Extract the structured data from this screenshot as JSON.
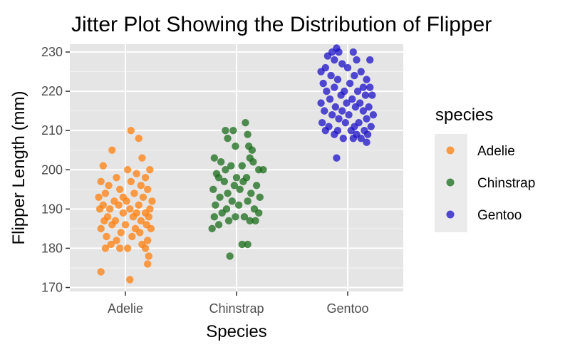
{
  "chart_data": {
    "type": "scatter",
    "title": "Jitter Plot Showing the Distribution of Flipper",
    "xlabel": "Species",
    "ylabel": "Flipper Length (mm)",
    "categories": [
      "Adelie",
      "Chinstrap",
      "Gentoo"
    ],
    "ylim": [
      169,
      232
    ],
    "yticks": [
      170,
      180,
      190,
      200,
      210,
      220,
      230
    ],
    "grid": true,
    "legend": {
      "title": "species",
      "placement": "right",
      "entries": [
        "Adelie",
        "Chinstrap",
        "Gentoo"
      ]
    },
    "series": [
      {
        "name": "Adelie",
        "color": "#ff7f0e",
        "points": [
          {
            "x": 0.05,
            "y": 210
          },
          {
            "x": 0.12,
            "y": 208
          },
          {
            "x": 0.15,
            "y": 203
          },
          {
            "x": -0.12,
            "y": 205
          },
          {
            "x": -0.2,
            "y": 201
          },
          {
            "x": 0.02,
            "y": 200
          },
          {
            "x": 0.22,
            "y": 200
          },
          {
            "x": 0.1,
            "y": 199
          },
          {
            "x": -0.08,
            "y": 198
          },
          {
            "x": 0.18,
            "y": 198
          },
          {
            "x": -0.22,
            "y": 197
          },
          {
            "x": 0.05,
            "y": 197
          },
          {
            "x": 0.14,
            "y": 196
          },
          {
            "x": -0.15,
            "y": 196
          },
          {
            "x": -0.05,
            "y": 195
          },
          {
            "x": 0.2,
            "y": 195
          },
          {
            "x": -0.18,
            "y": 194
          },
          {
            "x": 0.08,
            "y": 194
          },
          {
            "x": -0.24,
            "y": 193
          },
          {
            "x": -0.02,
            "y": 193
          },
          {
            "x": 0.16,
            "y": 193
          },
          {
            "x": 0.24,
            "y": 192
          },
          {
            "x": -0.1,
            "y": 192
          },
          {
            "x": 0.01,
            "y": 192
          },
          {
            "x": -0.2,
            "y": 191
          },
          {
            "x": 0.12,
            "y": 191
          },
          {
            "x": -0.06,
            "y": 191
          },
          {
            "x": 0.22,
            "y": 190
          },
          {
            "x": -0.14,
            "y": 190
          },
          {
            "x": 0.04,
            "y": 190
          },
          {
            "x": -0.23,
            "y": 190
          },
          {
            "x": 0.18,
            "y": 189
          },
          {
            "x": -0.02,
            "y": 189
          },
          {
            "x": 0.1,
            "y": 189
          },
          {
            "x": -0.16,
            "y": 188
          },
          {
            "x": 0.07,
            "y": 188
          },
          {
            "x": 0.21,
            "y": 188
          },
          {
            "x": -0.09,
            "y": 187
          },
          {
            "x": 0.14,
            "y": 187
          },
          {
            "x": -0.19,
            "y": 187
          },
          {
            "x": 0.0,
            "y": 186
          },
          {
            "x": 0.19,
            "y": 186
          },
          {
            "x": -0.12,
            "y": 186
          },
          {
            "x": 0.09,
            "y": 185
          },
          {
            "x": -0.22,
            "y": 185
          },
          {
            "x": 0.23,
            "y": 185
          },
          {
            "x": -0.04,
            "y": 184
          },
          {
            "x": 0.13,
            "y": 184
          },
          {
            "x": -0.17,
            "y": 183
          },
          {
            "x": 0.06,
            "y": 183
          },
          {
            "x": 0.2,
            "y": 182
          },
          {
            "x": -0.08,
            "y": 182
          },
          {
            "x": 0.15,
            "y": 181
          },
          {
            "x": -0.13,
            "y": 181
          },
          {
            "x": 0.02,
            "y": 180
          },
          {
            "x": 0.18,
            "y": 180
          },
          {
            "x": -0.05,
            "y": 180
          },
          {
            "x": -0.18,
            "y": 180
          },
          {
            "x": 0.21,
            "y": 178
          },
          {
            "x": 0.2,
            "y": 176
          },
          {
            "x": -0.22,
            "y": 174
          },
          {
            "x": 0.04,
            "y": 172
          }
        ]
      },
      {
        "name": "Chinstrap",
        "color": "#1a6b1a",
        "points": [
          {
            "x": 0.08,
            "y": 212
          },
          {
            "x": -0.1,
            "y": 210
          },
          {
            "x": -0.03,
            "y": 210
          },
          {
            "x": 0.1,
            "y": 209
          },
          {
            "x": -0.08,
            "y": 208
          },
          {
            "x": -0.01,
            "y": 206
          },
          {
            "x": 0.11,
            "y": 206
          },
          {
            "x": 0.14,
            "y": 205
          },
          {
            "x": 0.12,
            "y": 203
          },
          {
            "x": -0.2,
            "y": 203
          },
          {
            "x": -0.14,
            "y": 202
          },
          {
            "x": 0.15,
            "y": 202
          },
          {
            "x": -0.05,
            "y": 201
          },
          {
            "x": 0.05,
            "y": 201
          },
          {
            "x": -0.1,
            "y": 200
          },
          {
            "x": 0.2,
            "y": 200
          },
          {
            "x": 0.24,
            "y": 200
          },
          {
            "x": -0.18,
            "y": 199
          },
          {
            "x": 0.0,
            "y": 198
          },
          {
            "x": 0.09,
            "y": 198
          },
          {
            "x": -0.16,
            "y": 198
          },
          {
            "x": -0.11,
            "y": 197
          },
          {
            "x": 0.06,
            "y": 197
          },
          {
            "x": -0.02,
            "y": 196
          },
          {
            "x": 0.18,
            "y": 196
          },
          {
            "x": -0.21,
            "y": 195
          },
          {
            "x": 0.03,
            "y": 195
          },
          {
            "x": -0.08,
            "y": 194
          },
          {
            "x": 0.13,
            "y": 194
          },
          {
            "x": -0.15,
            "y": 193
          },
          {
            "x": 0.21,
            "y": 193
          },
          {
            "x": -0.04,
            "y": 192
          },
          {
            "x": 0.1,
            "y": 192
          },
          {
            "x": -0.19,
            "y": 191
          },
          {
            "x": 0.02,
            "y": 191
          },
          {
            "x": -0.09,
            "y": 190
          },
          {
            "x": 0.16,
            "y": 190
          },
          {
            "x": -0.13,
            "y": 189
          },
          {
            "x": 0.2,
            "y": 189
          },
          {
            "x": -0.01,
            "y": 188
          },
          {
            "x": 0.07,
            "y": 188
          },
          {
            "x": -0.2,
            "y": 188
          },
          {
            "x": 0.12,
            "y": 187
          },
          {
            "x": -0.07,
            "y": 187
          },
          {
            "x": 0.17,
            "y": 187
          },
          {
            "x": -0.16,
            "y": 186
          },
          {
            "x": -0.22,
            "y": 185
          },
          {
            "x": 0.05,
            "y": 181
          },
          {
            "x": 0.1,
            "y": 181
          },
          {
            "x": -0.06,
            "y": 178
          }
        ]
      },
      {
        "name": "Gentoo",
        "color": "#1c10c8",
        "points": [
          {
            "x": -0.1,
            "y": 231
          },
          {
            "x": -0.14,
            "y": 230
          },
          {
            "x": -0.08,
            "y": 230
          },
          {
            "x": 0.05,
            "y": 230
          },
          {
            "x": -0.18,
            "y": 229
          },
          {
            "x": 0.2,
            "y": 228
          },
          {
            "x": 0.08,
            "y": 228
          },
          {
            "x": -0.12,
            "y": 228
          },
          {
            "x": -0.05,
            "y": 227
          },
          {
            "x": -0.2,
            "y": 226
          },
          {
            "x": 0.0,
            "y": 226
          },
          {
            "x": 0.12,
            "y": 225
          },
          {
            "x": -0.24,
            "y": 225
          },
          {
            "x": -0.15,
            "y": 224
          },
          {
            "x": 0.06,
            "y": 224
          },
          {
            "x": -0.09,
            "y": 223
          },
          {
            "x": 0.17,
            "y": 223
          },
          {
            "x": -0.22,
            "y": 222
          },
          {
            "x": 0.02,
            "y": 222
          },
          {
            "x": 0.14,
            "y": 221
          },
          {
            "x": -0.12,
            "y": 221
          },
          {
            "x": 0.2,
            "y": 221
          },
          {
            "x": -0.03,
            "y": 220
          },
          {
            "x": 0.09,
            "y": 220
          },
          {
            "x": -0.19,
            "y": 220
          },
          {
            "x": 0.16,
            "y": 219
          },
          {
            "x": -0.06,
            "y": 219
          },
          {
            "x": 0.22,
            "y": 219
          },
          {
            "x": -0.16,
            "y": 218
          },
          {
            "x": 0.04,
            "y": 218
          },
          {
            "x": -0.24,
            "y": 217
          },
          {
            "x": 0.11,
            "y": 217
          },
          {
            "x": -0.01,
            "y": 217
          },
          {
            "x": 0.19,
            "y": 216
          },
          {
            "x": -0.11,
            "y": 216
          },
          {
            "x": 0.07,
            "y": 216
          },
          {
            "x": -0.21,
            "y": 215
          },
          {
            "x": 0.14,
            "y": 215
          },
          {
            "x": -0.05,
            "y": 215
          },
          {
            "x": 0.23,
            "y": 214
          },
          {
            "x": -0.14,
            "y": 214
          },
          {
            "x": 0.01,
            "y": 214
          },
          {
            "x": 0.17,
            "y": 213
          },
          {
            "x": -0.08,
            "y": 213
          },
          {
            "x": -0.23,
            "y": 212
          },
          {
            "x": 0.1,
            "y": 212
          },
          {
            "x": -0.02,
            "y": 212
          },
          {
            "x": 0.21,
            "y": 211
          },
          {
            "x": -0.17,
            "y": 211
          },
          {
            "x": 0.06,
            "y": 211
          },
          {
            "x": -0.09,
            "y": 210
          },
          {
            "x": 0.15,
            "y": 210
          },
          {
            "x": -0.2,
            "y": 210
          },
          {
            "x": 0.03,
            "y": 210
          },
          {
            "x": 0.18,
            "y": 209
          },
          {
            "x": -0.12,
            "y": 209
          },
          {
            "x": 0.08,
            "y": 209
          },
          {
            "x": -0.04,
            "y": 208
          },
          {
            "x": 0.12,
            "y": 208
          },
          {
            "x": 0.05,
            "y": 208
          },
          {
            "x": 0.17,
            "y": 207
          },
          {
            "x": -0.1,
            "y": 203
          }
        ]
      }
    ]
  }
}
